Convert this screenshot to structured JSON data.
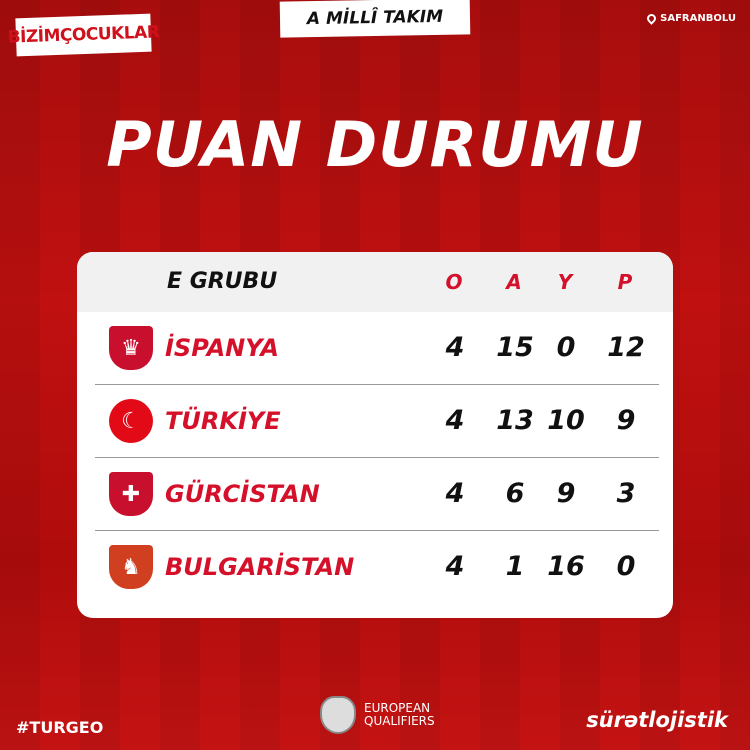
{
  "header": {
    "brand": "BİZİMÇOCUKLAR",
    "tag": "A MİLLÎ TAKIM",
    "location": "SAFRANBOLU",
    "location_icon": "map-pin-icon"
  },
  "title": "PUAN DURUMU",
  "table": {
    "group": "E GRUBU",
    "columns": [
      "O",
      "A",
      "Y",
      "P"
    ],
    "rows": [
      {
        "team": "İSPANYA",
        "crest": "spain-crest-icon",
        "values": [
          "4",
          "15",
          "0",
          "12"
        ]
      },
      {
        "team": "TÜRKİYE",
        "crest": "turkey-flag-icon",
        "values": [
          "4",
          "13",
          "10",
          "9"
        ]
      },
      {
        "team": "GÜRCİSTAN",
        "crest": "georgia-crest-icon",
        "values": [
          "4",
          "6",
          "9",
          "3"
        ]
      },
      {
        "team": "BULGARİSTAN",
        "crest": "bulgaria-crest-icon",
        "values": [
          "4",
          "1",
          "16",
          "0"
        ]
      }
    ]
  },
  "footer": {
    "hashtag": "#TURGEO",
    "competition_line1": "EUROPEAN",
    "competition_line2": "QUALIFIERS",
    "sponsor": "sürətlojistik"
  },
  "colors": {
    "accent": "#d4102a",
    "background": "#b50e0e"
  }
}
